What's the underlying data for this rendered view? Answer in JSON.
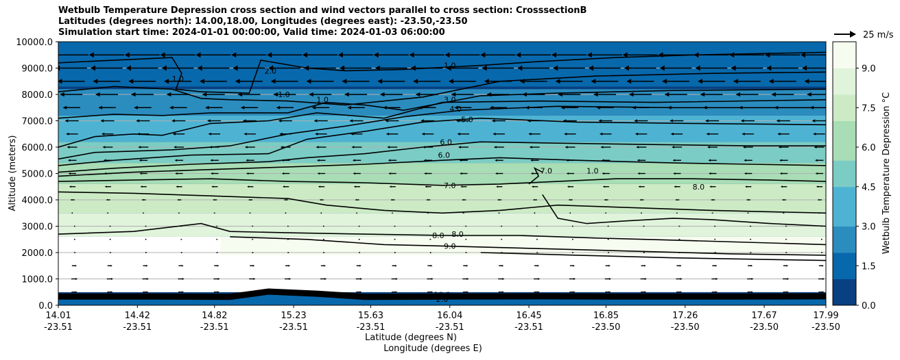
{
  "title": {
    "line1": "Wetbulb Temperature Depression cross section and wind vectors parallel to cross section: CrosssectionB",
    "line2": "Latitudes (degrees north): 14.00,18.00, Longitudes (degrees east): -23.50,-23.50",
    "line3": "Simulation start time: 2024-01-01 00:00:00, Valid time: 2024-01-03 06:00:00"
  },
  "chart_data": {
    "type": "heatmap",
    "ylabel": "Altitude (meters)",
    "xlabel_lat": "Latitude (degrees N)",
    "xlabel_lon": "Longitude (degrees E)",
    "ylim": [
      0,
      10000
    ],
    "y_ticks": [
      "0.0",
      "1000.0",
      "2000.0",
      "3000.0",
      "4000.0",
      "5000.0",
      "6000.0",
      "7000.0",
      "8000.0",
      "9000.0",
      "10000.0"
    ],
    "x_ticks": [
      {
        "lat": "14.01",
        "lon": "-23.51"
      },
      {
        "lat": "14.42",
        "lon": "-23.51"
      },
      {
        "lat": "14.82",
        "lon": "-23.51"
      },
      {
        "lat": "15.23",
        "lon": "-23.51"
      },
      {
        "lat": "15.63",
        "lon": "-23.51"
      },
      {
        "lat": "16.04",
        "lon": "-23.51"
      },
      {
        "lat": "16.45",
        "lon": "-23.51"
      },
      {
        "lat": "16.85",
        "lon": "-23.50"
      },
      {
        "lat": "17.26",
        "lon": "-23.50"
      },
      {
        "lat": "17.67",
        "lon": "-23.50"
      },
      {
        "lat": "17.99",
        "lon": "-23.50"
      }
    ],
    "grid": "horizontal",
    "colorbar": {
      "label": "Wetbulb Temperature Depression °C",
      "min": 0,
      "max": 10,
      "ticks": [
        "0.0",
        "1.5",
        "3.0",
        "4.5",
        "6.0",
        "7.5",
        "9.0"
      ],
      "colors": [
        "#084081",
        "#0868ac",
        "#2b8cbe",
        "#4eb3d3",
        "#7bccc4",
        "#a8ddb5",
        "#ccebc5",
        "#e0f3db",
        "#f7fcf0"
      ]
    },
    "wind_key": "25 m/s",
    "contour_labels": [
      {
        "text": "1.0",
        "lat": 14.63,
        "alt": 8600
      },
      {
        "text": "2.0",
        "lat": 15.11,
        "alt": 8900
      },
      {
        "text": "1.0",
        "lat": 15.18,
        "alt": 8000
      },
      {
        "text": "1.0",
        "lat": 15.38,
        "alt": 7800
      },
      {
        "text": "1.0",
        "lat": 16.04,
        "alt": 9100
      },
      {
        "text": "3.0",
        "lat": 16.04,
        "alt": 7800
      },
      {
        "text": "4.0",
        "lat": 16.07,
        "alt": 7450
      },
      {
        "text": "5.0",
        "lat": 16.13,
        "alt": 7050
      },
      {
        "text": "6.0",
        "lat": 16.02,
        "alt": 6200
      },
      {
        "text": "6.0",
        "lat": 16.01,
        "alt": 5700
      },
      {
        "text": "7.0",
        "lat": 16.54,
        "alt": 5100
      },
      {
        "text": "1.0",
        "lat": 16.78,
        "alt": 5100
      },
      {
        "text": "7.0",
        "lat": 16.04,
        "alt": 4550
      },
      {
        "text": "8.0",
        "lat": 17.33,
        "alt": 4500
      },
      {
        "text": "8.0",
        "lat": 15.98,
        "alt": 2650
      },
      {
        "text": "8.0",
        "lat": 16.08,
        "alt": 2700
      },
      {
        "text": "9.0",
        "lat": 16.04,
        "alt": 2250
      },
      {
        "text": "10.0",
        "lat": 16.0,
        "alt": 400
      },
      {
        "text": "2.0",
        "lat": 16.0,
        "alt": 230
      }
    ],
    "contours": [
      {
        "level": "1.0",
        "lat": [
          14.01,
          14.3,
          14.6,
          14.65,
          14.62,
          14.75,
          15.0,
          15.06,
          15.3,
          15.5,
          15.8,
          16.2,
          16.5,
          16.9,
          17.3,
          17.99
        ],
        "alt": [
          9200,
          9300,
          9400,
          8800,
          8200,
          8100,
          8050,
          9300,
          9000,
          8900,
          8950,
          9100,
          9250,
          9400,
          9500,
          9600
        ]
      },
      {
        "level": "1.0",
        "lat": [
          14.01,
          14.3,
          14.6,
          14.75,
          14.9,
          15.2,
          15.5,
          15.9,
          16.3,
          16.8,
          17.4,
          17.99
        ],
        "alt": [
          8100,
          8300,
          8200,
          7850,
          7800,
          7750,
          7600,
          7900,
          8500,
          8700,
          8800,
          8850
        ]
      },
      {
        "level": "2.0",
        "lat": [
          14.01,
          14.3,
          14.55,
          14.8,
          15.2,
          15.4,
          15.6,
          15.8,
          16.2,
          16.6,
          17.2,
          17.99
        ],
        "alt": [
          7100,
          7250,
          7200,
          7300,
          7300,
          7700,
          7600,
          7400,
          7950,
          8050,
          8150,
          8200
        ]
      },
      {
        "level": "3.0",
        "lat": [
          14.01,
          14.2,
          14.4,
          14.55,
          14.8,
          15.1,
          15.35,
          15.7,
          16.0,
          16.5,
          17.1,
          17.99
        ],
        "alt": [
          6000,
          6400,
          6500,
          6450,
          6900,
          7000,
          7300,
          7100,
          7700,
          7750,
          7700,
          7800
        ]
      },
      {
        "level": "4.0",
        "lat": [
          14.01,
          14.2,
          14.6,
          14.9,
          15.2,
          15.5,
          15.8,
          16.1,
          16.6,
          17.2,
          17.99
        ],
        "alt": [
          5550,
          5800,
          5900,
          6050,
          6500,
          6800,
          7150,
          7400,
          7550,
          7500,
          7500
        ]
      },
      {
        "level": "5.0",
        "lat": [
          14.01,
          14.3,
          14.7,
          15.1,
          15.3,
          15.6,
          15.9,
          16.2,
          16.7,
          17.3,
          17.99
        ],
        "alt": [
          5300,
          5500,
          5700,
          5750,
          6300,
          6600,
          6950,
          7100,
          6950,
          6900,
          6850
        ]
      },
      {
        "level": "6.0",
        "lat": [
          14.01,
          14.3,
          14.7,
          15.1,
          15.3,
          15.6,
          15.9,
          16.2,
          16.6,
          17.1,
          17.6,
          17.99
        ],
        "alt": [
          5050,
          5200,
          5350,
          5450,
          5600,
          5750,
          6000,
          6200,
          6150,
          6100,
          6050,
          6050
        ]
      },
      {
        "level": "6.0",
        "lat": [
          14.01,
          14.4,
          14.8,
          15.2,
          15.6,
          16.0,
          16.3,
          16.7,
          17.2,
          17.6,
          17.99
        ],
        "alt": [
          4900,
          5050,
          5150,
          5250,
          5350,
          5500,
          5600,
          5500,
          5400,
          5350,
          5300
        ]
      },
      {
        "level": "7.0",
        "lat": [
          14.01,
          14.4,
          14.8,
          15.2,
          15.6,
          16.0,
          16.3,
          16.6,
          16.9,
          17.3,
          17.7,
          17.99
        ],
        "alt": [
          4700,
          4750,
          4800,
          4700,
          4650,
          4550,
          4600,
          4700,
          4800,
          4800,
          4750,
          4700
        ]
      },
      {
        "level": "1.0",
        "lat": [
          16.45,
          16.5,
          16.48,
          16.52
        ],
        "alt": [
          4600,
          4900,
          5200,
          5050
        ]
      },
      {
        "level": "8.0",
        "lat": [
          16.52,
          16.6,
          16.75,
          16.95,
          17.2,
          17.4,
          17.7,
          17.99
        ],
        "alt": [
          4200,
          3300,
          3100,
          3200,
          3300,
          3250,
          3100,
          3000
        ]
      },
      {
        "level": "8.0",
        "lat": [
          14.01,
          14.4,
          14.8,
          15.2,
          15.4,
          15.7,
          16.0,
          16.3,
          16.6,
          17.0,
          17.4,
          17.99
        ],
        "alt": [
          4300,
          4250,
          4150,
          4050,
          3800,
          3600,
          3500,
          3600,
          3800,
          3700,
          3600,
          3500
        ]
      },
      {
        "level": "8.0",
        "lat": [
          14.01,
          14.4,
          14.75,
          14.9,
          15.2,
          15.6,
          16.0,
          16.4,
          16.8,
          17.3,
          17.99
        ],
        "alt": [
          2700,
          2800,
          3100,
          2800,
          2750,
          2700,
          2650,
          2650,
          2550,
          2450,
          2300
        ]
      },
      {
        "level": "9.0",
        "lat": [
          14.9,
          15.3,
          15.7,
          16.0,
          16.5,
          17.0,
          17.5,
          17.99
        ],
        "alt": [
          2600,
          2500,
          2300,
          2250,
          2150,
          2050,
          1950,
          1900
        ]
      },
      {
        "level": "8.0",
        "lat": [
          16.2,
          16.7,
          17.2,
          17.99
        ],
        "alt": [
          2000,
          1900,
          1800,
          1700
        ]
      }
    ],
    "wind_rows": [
      {
        "alt": 9500,
        "length": 1.0,
        "dir": -1
      },
      {
        "alt": 9000,
        "length": 0.9,
        "dir": -1
      },
      {
        "alt": 8500,
        "length": 0.75,
        "dir": -1
      },
      {
        "alt": 8000,
        "length": 0.6,
        "dir": -1
      },
      {
        "alt": 7500,
        "length": 0.45,
        "dir": -1
      },
      {
        "alt": 7000,
        "length": 0.35,
        "dir": -1
      },
      {
        "alt": 6500,
        "length": 0.3,
        "dir": -1
      },
      {
        "alt": 6000,
        "length": 0.25,
        "dir": -1
      },
      {
        "alt": 5500,
        "length": 0.2,
        "dir": -1
      },
      {
        "alt": 5000,
        "length": 0.18,
        "dir": -1
      },
      {
        "alt": 4500,
        "length": 0.14,
        "dir": -1
      },
      {
        "alt": 4000,
        "length": 0.08,
        "dir": -1
      },
      {
        "alt": 3500,
        "length": 0.04,
        "dir": -1
      },
      {
        "alt": 3000,
        "length": 0.03,
        "dir": 1
      },
      {
        "alt": 2500,
        "length": 0.04,
        "dir": 1
      },
      {
        "alt": 2000,
        "length": 0.06,
        "dir": 1
      },
      {
        "alt": 1500,
        "length": 0.1,
        "dir": 1
      },
      {
        "alt": 1000,
        "length": 0.14,
        "dir": 1
      },
      {
        "alt": 500,
        "length": 0.12,
        "dir": 1
      }
    ]
  }
}
